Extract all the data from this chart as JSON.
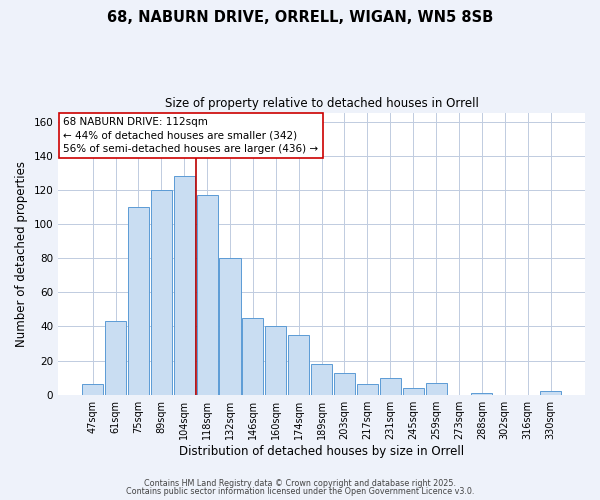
{
  "title": "68, NABURN DRIVE, ORRELL, WIGAN, WN5 8SB",
  "subtitle": "Size of property relative to detached houses in Orrell",
  "xlabel": "Distribution of detached houses by size in Orrell",
  "ylabel": "Number of detached properties",
  "bar_labels": [
    "47sqm",
    "61sqm",
    "75sqm",
    "89sqm",
    "104sqm",
    "118sqm",
    "132sqm",
    "146sqm",
    "160sqm",
    "174sqm",
    "189sqm",
    "203sqm",
    "217sqm",
    "231sqm",
    "245sqm",
    "259sqm",
    "273sqm",
    "288sqm",
    "302sqm",
    "316sqm",
    "330sqm"
  ],
  "bar_values": [
    6,
    43,
    110,
    120,
    128,
    117,
    80,
    45,
    40,
    35,
    18,
    13,
    6,
    10,
    4,
    7,
    0,
    1,
    0,
    0,
    2
  ],
  "bar_color": "#c9ddf2",
  "bar_edge_color": "#5b9bd5",
  "ylim": [
    0,
    165
  ],
  "yticks": [
    0,
    20,
    40,
    60,
    80,
    100,
    120,
    140,
    160
  ],
  "vline_x_index": 4.5,
  "vline_color": "#bb0000",
  "annotation_title": "68 NABURN DRIVE: 112sqm",
  "annotation_line1": "← 44% of detached houses are smaller (342)",
  "annotation_line2": "56% of semi-detached houses are larger (436) →",
  "annotation_box_color": "#ffffff",
  "annotation_box_edge": "#cc0000",
  "footer1": "Contains HM Land Registry data © Crown copyright and database right 2025.",
  "footer2": "Contains public sector information licensed under the Open Government Licence v3.0.",
  "bg_color": "#eef2fa",
  "plot_bg_color": "#ffffff",
  "grid_color": "#c0cce0"
}
